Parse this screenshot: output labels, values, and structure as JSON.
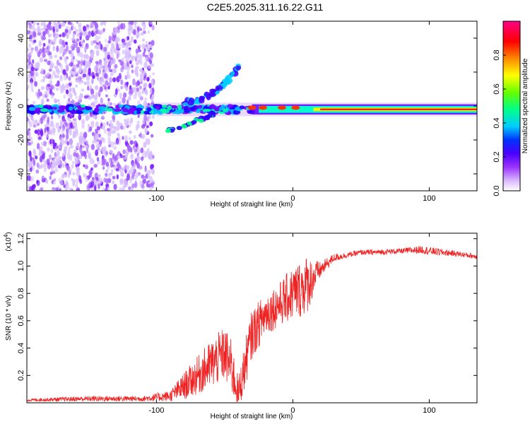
{
  "title": "C2E5.2025.311.16.22.G11",
  "chart_data": [
    {
      "type": "heatmap",
      "name": "spectrogram",
      "xlabel": "Height of straight line (km)",
      "ylabel": "Frequency (Hz)",
      "xlim": [
        -195,
        135
      ],
      "ylim": [
        -50,
        50
      ],
      "xticks": [
        -100,
        0,
        100
      ],
      "yticks": [
        -40,
        -20,
        0,
        20,
        40
      ],
      "colorbar": {
        "label": "Normalized spectral amplitude",
        "range": [
          0,
          1
        ],
        "ticks": [
          "0.0",
          "0.2",
          "0.4",
          "0.6",
          "0.8"
        ],
        "tick_values": [
          0,
          0.2,
          0.4,
          0.6,
          0.8
        ],
        "colors": [
          "#ffffff",
          "#c9a0ff",
          "#7a00ff",
          "#0000ff",
          "#00ccff",
          "#00ff66",
          "#aaff00",
          "#ffff00",
          "#ff8800",
          "#ff0000",
          "#ff0088"
        ]
      },
      "features": {
        "main_band_freq_hz": -2,
        "scatter_region_x": [
          -195,
          -102
        ],
        "rising_branch": {
          "x": [
            -80,
            -40
          ],
          "freq": [
            2,
            22
          ]
        },
        "lower_branch": {
          "x": [
            -92,
            -58
          ],
          "freq": [
            -15,
            -5
          ]
        }
      }
    },
    {
      "type": "line",
      "name": "snr",
      "xlabel": "Height of straight line (km)",
      "ylabel": "SNR (10 * v/v)",
      "multiplier": "(x10",
      "multiplier_exp": "4",
      "xlim": [
        -195,
        135
      ],
      "ylim": [
        0,
        1.24
      ],
      "xticks": [
        -100,
        0,
        100
      ],
      "yticks": [
        0.2,
        0.4,
        0.6,
        0.8,
        1.0,
        1.2
      ],
      "ytick_labels": [
        "0.2",
        "0.4",
        "0.6",
        "0.8",
        "1.0",
        "1.2"
      ],
      "color": "#ee2222",
      "series": {
        "x": [
          -195,
          -150,
          -110,
          -90,
          -80,
          -70,
          -60,
          -50,
          -45,
          -40,
          -35,
          -30,
          -20,
          -10,
          0,
          10,
          20,
          30,
          40,
          50,
          60,
          80,
          95,
          100,
          120,
          135
        ],
        "y": [
          0.02,
          0.03,
          0.03,
          0.05,
          0.12,
          0.2,
          0.28,
          0.36,
          0.26,
          0.06,
          0.28,
          0.5,
          0.65,
          0.72,
          0.8,
          0.86,
          0.97,
          1.06,
          1.08,
          1.1,
          1.1,
          1.11,
          1.12,
          1.11,
          1.09,
          1.07
        ],
        "noise": [
          0.01,
          0.02,
          0.02,
          0.04,
          0.1,
          0.14,
          0.18,
          0.2,
          0.2,
          0.12,
          0.18,
          0.18,
          0.16,
          0.16,
          0.2,
          0.22,
          0.06,
          0.03,
          0.02,
          0.02,
          0.02,
          0.02,
          0.03,
          0.03,
          0.02,
          0.02
        ]
      }
    }
  ]
}
